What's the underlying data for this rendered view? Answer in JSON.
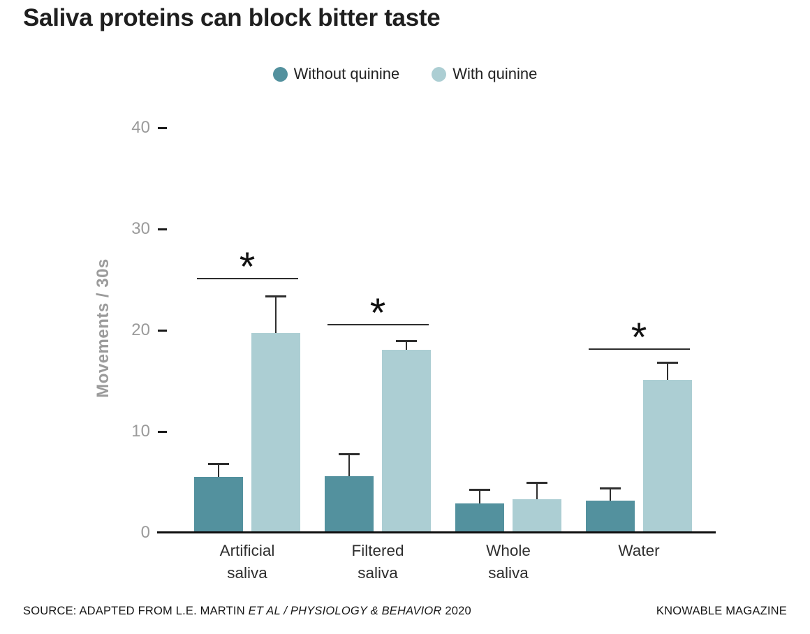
{
  "title": "Saliva proteins can block bitter taste",
  "legend": {
    "items": [
      {
        "label": "Without quinine",
        "color": "#53919E"
      },
      {
        "label": "With quinine",
        "color": "#ACCED3"
      }
    ]
  },
  "chart_data": {
    "type": "bar",
    "title": "Saliva proteins can block bitter taste",
    "categories": [
      "Artificial saliva",
      "Filtered saliva",
      "Whole saliva",
      "Water"
    ],
    "series": [
      {
        "name": "Without quinine",
        "color": "#53919E",
        "values": [
          5.5,
          5.6,
          2.9,
          3.2
        ],
        "errors": [
          1.3,
          2.2,
          1.4,
          1.2
        ]
      },
      {
        "name": "With quinine",
        "color": "#ACCED3",
        "values": [
          19.7,
          18.1,
          3.3,
          15.1
        ],
        "errors": [
          3.7,
          0.9,
          1.7,
          1.7
        ]
      }
    ],
    "xlabel": "",
    "ylabel": "Movements / 30s",
    "yticks": [
      0,
      10,
      20,
      30,
      40
    ],
    "ylim": [
      0,
      40
    ],
    "grid": false,
    "legend_position": "top",
    "error_bars": "upper only",
    "significance": [
      {
        "category": "Artificial saliva",
        "category_index": 0,
        "marker": "*",
        "line_y": 25.2
      },
      {
        "category": "Filtered saliva",
        "category_index": 1,
        "marker": "*",
        "line_y": 20.6
      },
      {
        "category": "Water",
        "category_index": 3,
        "marker": "*",
        "line_y": 18.2
      }
    ]
  },
  "footer": {
    "source_prefix": "SOURCE: ADAPTED FROM L.E. MARTIN ",
    "source_italic": "ET AL / PHYSIOLOGY & BEHAVIOR",
    "source_suffix": " 2020",
    "credit": "KNOWABLE MAGAZINE"
  }
}
